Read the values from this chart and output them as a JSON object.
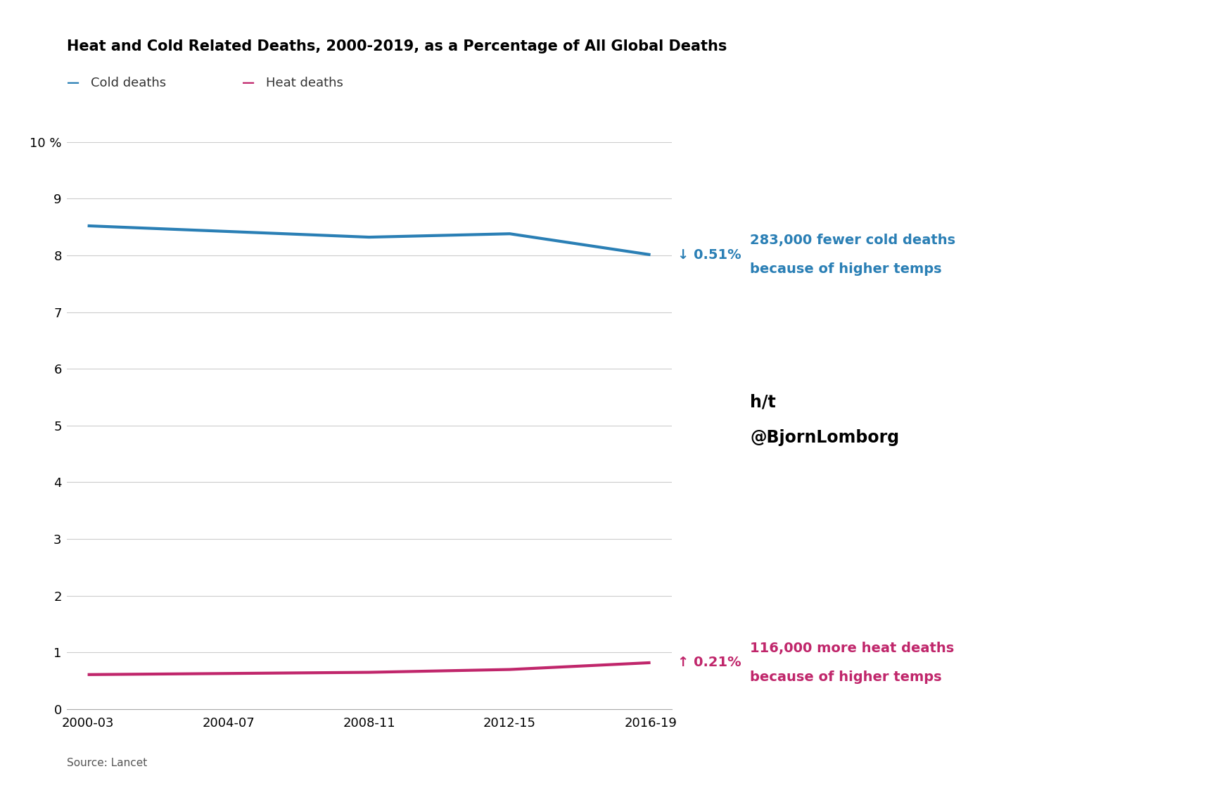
{
  "title": "Heat and Cold Related Deaths, 2000-2019, as a Percentage of All Global Deaths",
  "title_fontsize": 15,
  "source": "Source: Lancet",
  "x_labels": [
    "2000-03",
    "2004-07",
    "2008-11",
    "2012-15",
    "2016-19"
  ],
  "x_values": [
    0,
    1,
    2,
    3,
    4
  ],
  "cold_values": [
    8.52,
    8.42,
    8.32,
    8.38,
    8.01
  ],
  "heat_values": [
    0.61,
    0.63,
    0.65,
    0.7,
    0.82
  ],
  "cold_color": "#2a7fb5",
  "heat_color": "#c0266b",
  "cold_label": "Cold deaths",
  "heat_label": "Heat deaths",
  "ylim": [
    0,
    10
  ],
  "yticks": [
    0,
    1,
    2,
    3,
    4,
    5,
    6,
    7,
    8,
    9,
    10
  ],
  "ytick_label_10": "10 %",
  "background_color": "#ffffff",
  "grid_color": "#cccccc",
  "annotation_cold_arrow": "↓ 0.51%",
  "annotation_cold_text1": "283,000 fewer cold deaths",
  "annotation_cold_text2": "because of higher temps",
  "annotation_heat_arrow": "↑ 0.21%",
  "annotation_heat_text1": "116,000 more heat deaths",
  "annotation_heat_text2": "because of higher temps",
  "credit_line1": "h/t",
  "credit_line2": "@BjornLomborg",
  "line_width": 3.0
}
